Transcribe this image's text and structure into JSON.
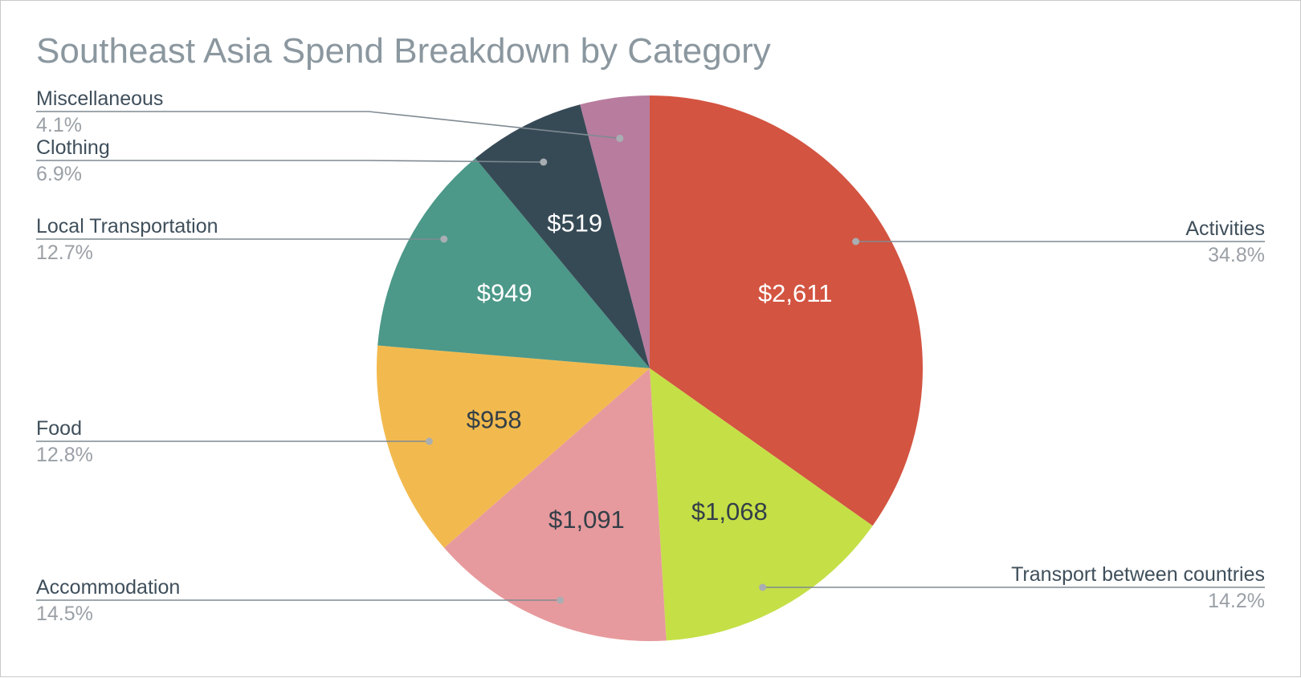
{
  "chart_data": {
    "type": "pie",
    "title": "Southeast Asia Spend Breakdown by Category",
    "start_angle_deg": 0,
    "direction": "clockwise",
    "slices": [
      {
        "label": "Activities",
        "value": 2611,
        "value_label": "$2,611",
        "percent_label": "34.8%",
        "color": "#d35441",
        "text_color": "#ffffff"
      },
      {
        "label": "Transport between countries",
        "value": 1068,
        "value_label": "$1,068",
        "percent_label": "14.2%",
        "color": "#c5df47",
        "text_color": "#333f48"
      },
      {
        "label": "Accommodation",
        "value": 1091,
        "value_label": "$1,091",
        "percent_label": "14.5%",
        "color": "#e79a9d",
        "text_color": "#333f48"
      },
      {
        "label": "Food",
        "value": 958,
        "value_label": "$958",
        "percent_label": "12.8%",
        "color": "#f2ba4e",
        "text_color": "#333f48"
      },
      {
        "label": "Local Transportation",
        "value": 949,
        "value_label": "$949",
        "percent_label": "12.7%",
        "color": "#4c9889",
        "text_color": "#ffffff"
      },
      {
        "label": "Clothing",
        "value": 519,
        "value_label": "$519",
        "percent_label": "6.9%",
        "color": "#364a56",
        "text_color": "#ffffff"
      },
      {
        "label": "Miscellaneous",
        "value": 308,
        "value_label": "",
        "percent_label": "4.1%",
        "color": "#b87c9e",
        "text_color": "#ffffff"
      }
    ],
    "legend": "callout-labels"
  },
  "colors": {
    "title": "#8b979f",
    "category_text": "#3f4f5b",
    "percent_text": "#9aa0a6",
    "leader_line": "#7f8a91",
    "leader_dot": "#a9aeb2"
  }
}
